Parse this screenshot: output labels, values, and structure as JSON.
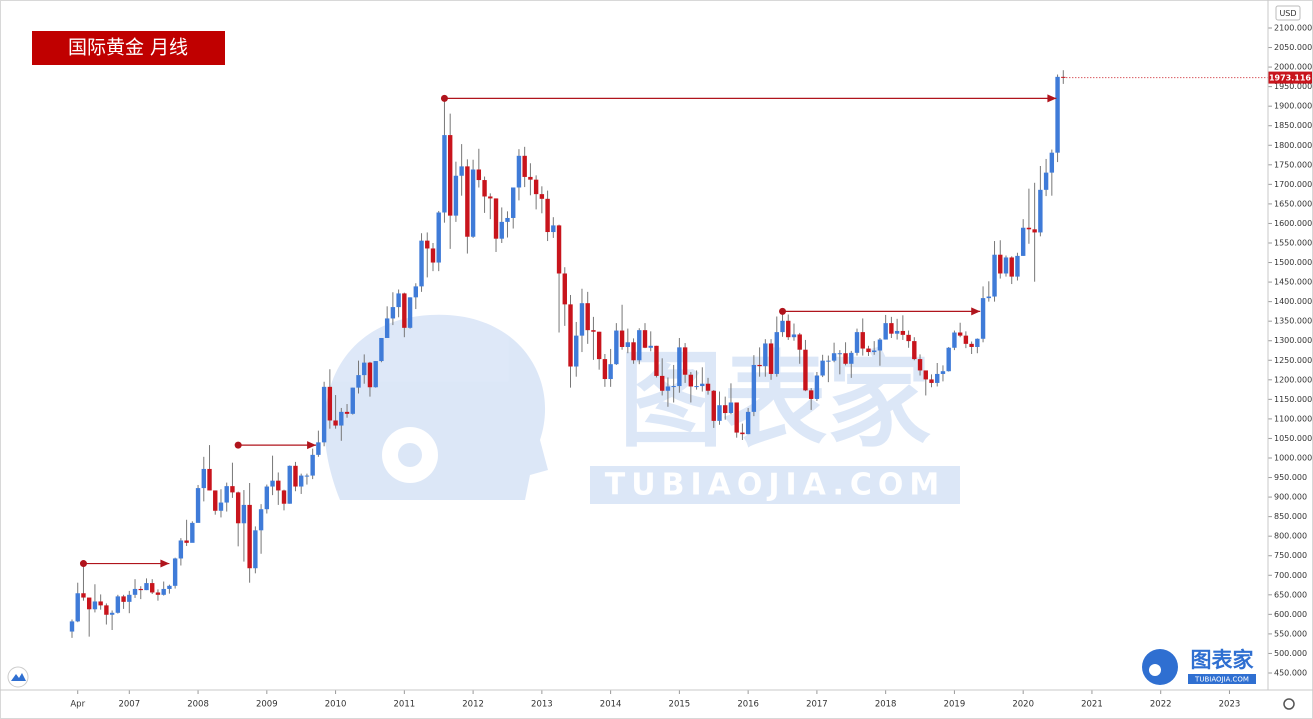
{
  "chart_data": {
    "type": "candlestick",
    "title": "国际黄金 月线",
    "currency": "USD",
    "last_price": 1973.116,
    "up_color": "#3f7bd8",
    "down_color": "#c8141c",
    "level_color": "#b0141c",
    "levels": [
      730,
      1033,
      1920,
      1375
    ],
    "watermark": {
      "brand": "图表家",
      "site": "TUBIAOJIA.COM"
    },
    "logo": {
      "brand": "图表家",
      "site": "TUBIAOJIA.COM"
    },
    "ylim": [
      406.5,
      2171.6
    ],
    "yticks": [
      {
        "value": 450,
        "label": "450.000"
      },
      {
        "value": 500,
        "label": "500.000"
      },
      {
        "value": 550,
        "label": "550.000"
      },
      {
        "value": 600,
        "label": "600.000"
      },
      {
        "value": 650,
        "label": "650.000"
      },
      {
        "value": 700,
        "label": "700.000"
      },
      {
        "value": 750,
        "label": "750.000"
      },
      {
        "value": 800,
        "label": "800.000"
      },
      {
        "value": 850,
        "label": "850.000"
      },
      {
        "value": 900,
        "label": "900.000"
      },
      {
        "value": 950,
        "label": "950.000"
      },
      {
        "value": 1000,
        "label": "1000.000"
      },
      {
        "value": 1050,
        "label": "1050.000"
      },
      {
        "value": 1100,
        "label": "1100.000"
      },
      {
        "value": 1150,
        "label": "1150.000"
      },
      {
        "value": 1200,
        "label": "1200.000"
      },
      {
        "value": 1250,
        "label": "1250.000"
      },
      {
        "value": 1300,
        "label": "1300.000"
      },
      {
        "value": 1350,
        "label": "1350.000"
      },
      {
        "value": 1400,
        "label": "1400.000"
      },
      {
        "value": 1450,
        "label": "1450.000"
      },
      {
        "value": 1500,
        "label": "1500.000"
      },
      {
        "value": 1550,
        "label": "1550.000"
      },
      {
        "value": 1600,
        "label": "1600.000"
      },
      {
        "value": 1650,
        "label": "1650.000"
      },
      {
        "value": 1700,
        "label": "1700.000"
      },
      {
        "value": 1750,
        "label": "1750.000"
      },
      {
        "value": 1800,
        "label": "1800.000"
      },
      {
        "value": 1850,
        "label": "1850.000"
      },
      {
        "value": 1900,
        "label": "1900.000"
      },
      {
        "value": 1950,
        "label": "1950.000"
      },
      {
        "value": 2000,
        "label": "2000.000"
      },
      {
        "value": 2050,
        "label": "2050.000"
      },
      {
        "value": 2100,
        "label": "2100.000"
      }
    ],
    "categories": [
      null,
      "Apr",
      null,
      null,
      null,
      null,
      null,
      null,
      null,
      null,
      "2007",
      null,
      null,
      null,
      null,
      null,
      null,
      null,
      null,
      null,
      null,
      null,
      "2008",
      null,
      null,
      null,
      null,
      null,
      null,
      null,
      null,
      null,
      null,
      null,
      "2009",
      null,
      null,
      null,
      null,
      null,
      null,
      null,
      null,
      null,
      null,
      null,
      "2010",
      null,
      null,
      null,
      null,
      null,
      null,
      null,
      null,
      null,
      null,
      null,
      "2011",
      null,
      null,
      null,
      null,
      null,
      null,
      null,
      null,
      null,
      null,
      null,
      "2012",
      null,
      null,
      null,
      null,
      null,
      null,
      null,
      null,
      null,
      null,
      null,
      "2013",
      null,
      null,
      null,
      null,
      null,
      null,
      null,
      null,
      null,
      null,
      null,
      "2014",
      null,
      null,
      null,
      null,
      null,
      null,
      null,
      null,
      null,
      null,
      null,
      "2015",
      null,
      null,
      null,
      null,
      null,
      null,
      null,
      null,
      null,
      null,
      null,
      "2016",
      null,
      null,
      null,
      null,
      null,
      null,
      null,
      null,
      null,
      null,
      null,
      "2017",
      null,
      null,
      null,
      null,
      null,
      null,
      null,
      null,
      null,
      null,
      null,
      "2018",
      null,
      null,
      null,
      null,
      null,
      null,
      null,
      null,
      null,
      null,
      null,
      "2019",
      null,
      null,
      null,
      null,
      null,
      null,
      null,
      null,
      null,
      null,
      null,
      "2020",
      null,
      null,
      null,
      null,
      null,
      null,
      null,
      null,
      null,
      null,
      null,
      "2021",
      null,
      null,
      null,
      null,
      null,
      null,
      null,
      null,
      null,
      null,
      null,
      "2022",
      null,
      null,
      null,
      null,
      null,
      null,
      null,
      null,
      null,
      null,
      null,
      "2023"
    ],
    "open": [
      556,
      582,
      654,
      643,
      613,
      633,
      623,
      599,
      604,
      646,
      632,
      650,
      665,
      662,
      680,
      656,
      650,
      665,
      673,
      743,
      789,
      783,
      834,
      923,
      972,
      917,
      865,
      886,
      928,
      912,
      833,
      880,
      718,
      815,
      869,
      927,
      942,
      917,
      883,
      980,
      927,
      955,
      955,
      1008,
      1040,
      1182,
      1096,
      1083,
      1118,
      1113,
      1180,
      1212,
      1244,
      1181,
      1248,
      1307,
      1357,
      1386,
      1421,
      1333,
      1411,
      1439,
      1556,
      1536,
      1500,
      1628,
      1826,
      1620,
      1722,
      1746,
      1566,
      1738,
      1711,
      1669,
      1664,
      1561,
      1604,
      1614,
      1692,
      1773,
      1719,
      1712,
      1675,
      1663,
      1578,
      1595,
      1472,
      1393,
      1234,
      1313,
      1396,
      1327,
      1323,
      1253,
      1202,
      1240,
      1326,
      1284,
      1296,
      1250,
      1327,
      1282,
      1287,
      1210,
      1172,
      1183,
      1184,
      1283,
      1213,
      1183,
      1184,
      1190,
      1172,
      1095,
      1135,
      1115,
      1142,
      1065,
      1061,
      1118,
      1238,
      1235,
      1293,
      1215,
      1322,
      1351,
      1309,
      1316,
      1277,
      1173,
      1151,
      1211,
      1249,
      1249,
      1268,
      1268,
      1241,
      1269,
      1322,
      1280,
      1271,
      1275,
      1303,
      1345,
      1318,
      1325,
      1315,
      1299,
      1253,
      1224,
      1201,
      1192,
      1215,
      1222,
      1282,
      1321,
      1313,
      1292,
      1284,
      1305,
      1409,
      1413,
      1520,
      1472,
      1513,
      1464,
      1517,
      1589,
      1585,
      1577,
      1686,
      1730,
      1781,
      1975,
      null,
      null,
      null,
      null,
      null,
      null,
      null,
      null,
      null,
      null,
      null,
      null,
      null,
      null,
      null,
      null,
      null,
      null,
      null,
      null,
      null,
      null,
      null,
      null,
      null,
      null,
      null,
      null,
      null
    ],
    "high": [
      587,
      681,
      730,
      640,
      677,
      651,
      628,
      610,
      650,
      650,
      660,
      690,
      672,
      692,
      690,
      664,
      684,
      676,
      745,
      795,
      842,
      838,
      931,
      1003,
      1033,
      917,
      920,
      937,
      988,
      914,
      918,
      936,
      825,
      882,
      932,
      1006,
      963,
      919,
      981,
      990,
      960,
      960,
      1024,
      1070,
      1195,
      1227,
      1161,
      1128,
      1138,
      1180,
      1249,
      1265,
      1246,
      1248,
      1307,
      1388,
      1424,
      1431,
      1423,
      1411,
      1447,
      1575,
      1577,
      1550,
      1632,
      1920,
      1881,
      1758,
      1803,
      1764,
      1763,
      1791,
      1720,
      1677,
      1664,
      1641,
      1631,
      1692,
      1790,
      1796,
      1754,
      1723,
      1695,
      1684,
      1616,
      1597,
      1488,
      1417,
      1348,
      1433,
      1425,
      1361,
      1323,
      1266,
      1279,
      1345,
      1392,
      1331,
      1306,
      1332,
      1345,
      1324,
      1287,
      1255,
      1206,
      1238,
      1307,
      1294,
      1220,
      1224,
      1232,
      1205,
      1174,
      1170,
      1157,
      1191,
      1142,
      1088,
      1128,
      1263,
      1283,
      1304,
      1304,
      1362,
      1375,
      1367,
      1344,
      1320,
      1302,
      1179,
      1220,
      1264,
      1262,
      1295,
      1276,
      1296,
      1274,
      1331,
      1357,
      1287,
      1299,
      1307,
      1366,
      1361,
      1356,
      1365,
      1326,
      1309,
      1265,
      1215,
      1214,
      1243,
      1237,
      1284,
      1326,
      1346,
      1324,
      1298,
      1306,
      1439,
      1452,
      1555,
      1557,
      1518,
      1516,
      1525,
      1611,
      1689,
      1704,
      1747,
      1765,
      1789,
      1981,
      1992,
      null,
      null,
      null,
      null,
      null,
      null,
      null,
      null,
      null,
      null,
      null,
      null,
      null,
      null,
      null,
      null,
      null,
      null,
      null,
      null,
      null,
      null,
      null,
      null,
      null,
      null,
      null,
      null,
      null
    ],
    "low": [
      540,
      580,
      635,
      543,
      605,
      612,
      574,
      560,
      602,
      614,
      603,
      642,
      639,
      662,
      652,
      635,
      648,
      653,
      666,
      725,
      775,
      785,
      835,
      889,
      917,
      855,
      848,
      863,
      898,
      774,
      735,
      681,
      705,
      755,
      858,
      905,
      880,
      866,
      883,
      915,
      908,
      932,
      946,
      1003,
      1030,
      1075,
      1075,
      1044,
      1103,
      1111,
      1165,
      1190,
      1157,
      1180,
      1245,
      1316,
      1340,
      1360,
      1309,
      1331,
      1381,
      1425,
      1462,
      1478,
      1478,
      1602,
      1535,
      1604,
      1671,
      1523,
      1563,
      1692,
      1627,
      1611,
      1527,
      1550,
      1564,
      1587,
      1659,
      1693,
      1672,
      1636,
      1626,
      1555,
      1563,
      1321,
      1338,
      1180,
      1208,
      1271,
      1292,
      1251,
      1226,
      1182,
      1182,
      1238,
      1277,
      1268,
      1241,
      1240,
      1281,
      1273,
      1206,
      1160,
      1131,
      1142,
      1167,
      1192,
      1142,
      1175,
      1170,
      1162,
      1077,
      1085,
      1098,
      1112,
      1052,
      1046,
      1061,
      1107,
      1208,
      1208,
      1200,
      1208,
      1310,
      1302,
      1300,
      1241,
      1171,
      1123,
      1146,
      1207,
      1194,
      1245,
      1214,
      1237,
      1205,
      1262,
      1262,
      1261,
      1264,
      1236,
      1303,
      1307,
      1303,
      1302,
      1282,
      1250,
      1211,
      1160,
      1181,
      1183,
      1196,
      1221,
      1276,
      1309,
      1281,
      1266,
      1268,
      1296,
      1400,
      1400,
      1459,
      1464,
      1445,
      1454,
      1517,
      1548,
      1451,
      1567,
      1670,
      1671,
      1757,
      1957,
      null,
      null,
      null,
      null,
      null,
      null,
      null,
      null,
      null,
      null,
      null,
      null,
      null,
      null,
      null,
      null,
      null,
      null,
      null,
      null,
      null,
      null,
      null,
      null,
      null,
      null,
      null,
      null,
      null
    ],
    "close": [
      582,
      654,
      643,
      613,
      633,
      623,
      599,
      604,
      646,
      632,
      650,
      665,
      662,
      680,
      656,
      650,
      665,
      673,
      743,
      789,
      783,
      834,
      923,
      972,
      917,
      865,
      886,
      928,
      912,
      833,
      880,
      718,
      815,
      869,
      927,
      942,
      917,
      883,
      980,
      927,
      955,
      955,
      1008,
      1040,
      1182,
      1096,
      1083,
      1118,
      1113,
      1180,
      1212,
      1244,
      1181,
      1248,
      1307,
      1357,
      1386,
      1421,
      1333,
      1411,
      1439,
      1556,
      1536,
      1500,
      1628,
      1826,
      1620,
      1722,
      1746,
      1566,
      1738,
      1711,
      1669,
      1664,
      1561,
      1604,
      1614,
      1692,
      1773,
      1719,
      1712,
      1675,
      1663,
      1578,
      1595,
      1472,
      1393,
      1234,
      1313,
      1396,
      1327,
      1323,
      1253,
      1202,
      1240,
      1326,
      1284,
      1296,
      1250,
      1327,
      1282,
      1287,
      1210,
      1172,
      1183,
      1184,
      1283,
      1213,
      1183,
      1184,
      1190,
      1172,
      1095,
      1135,
      1115,
      1142,
      1065,
      1061,
      1118,
      1238,
      1235,
      1293,
      1215,
      1322,
      1351,
      1309,
      1316,
      1277,
      1173,
      1151,
      1211,
      1249,
      1249,
      1268,
      1268,
      1241,
      1269,
      1322,
      1280,
      1271,
      1275,
      1303,
      1345,
      1318,
      1325,
      1315,
      1299,
      1253,
      1224,
      1201,
      1192,
      1215,
      1222,
      1282,
      1321,
      1313,
      1292,
      1284,
      1305,
      1409,
      1413,
      1520,
      1472,
      1513,
      1464,
      1517,
      1589,
      1585,
      1577,
      1686,
      1730,
      1781,
      1975,
      1973.116,
      null,
      null,
      null,
      null,
      null,
      null,
      null,
      null,
      null,
      null,
      null,
      null,
      null,
      null,
      null,
      null,
      null,
      null,
      null,
      null,
      null,
      null,
      null,
      null,
      null,
      null,
      null,
      null,
      null
    ]
  }
}
